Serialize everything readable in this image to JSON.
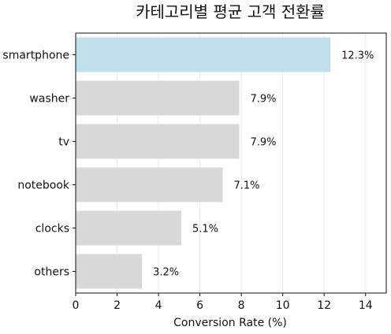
{
  "chart_data": {
    "type": "bar",
    "orientation": "horizontal",
    "title": "카테고리별 평균 고객 전환률",
    "xlabel": "Conversion Rate (%)",
    "ylabel": "",
    "categories": [
      "smartphone",
      "washer",
      "tv",
      "notebook",
      "clocks",
      "others"
    ],
    "values": [
      12.3,
      7.9,
      7.9,
      7.1,
      5.1,
      3.2
    ],
    "value_labels": [
      "12.3%",
      "7.9%",
      "7.9%",
      "7.1%",
      "5.1%",
      "3.2%"
    ],
    "xlim": [
      0,
      15
    ],
    "x_ticks": [
      0,
      2,
      4,
      6,
      8,
      10,
      12,
      14
    ],
    "x_tick_labels": [
      "0",
      "2",
      "4",
      "6",
      "8",
      "10",
      "12",
      "14"
    ],
    "grid": "vertical",
    "legend": "none",
    "colors": {
      "highlight": "#bfe0ea",
      "default": "#d9d9d9",
      "grid": "#ececec",
      "axis": "#111111"
    },
    "highlight_index": 0
  }
}
